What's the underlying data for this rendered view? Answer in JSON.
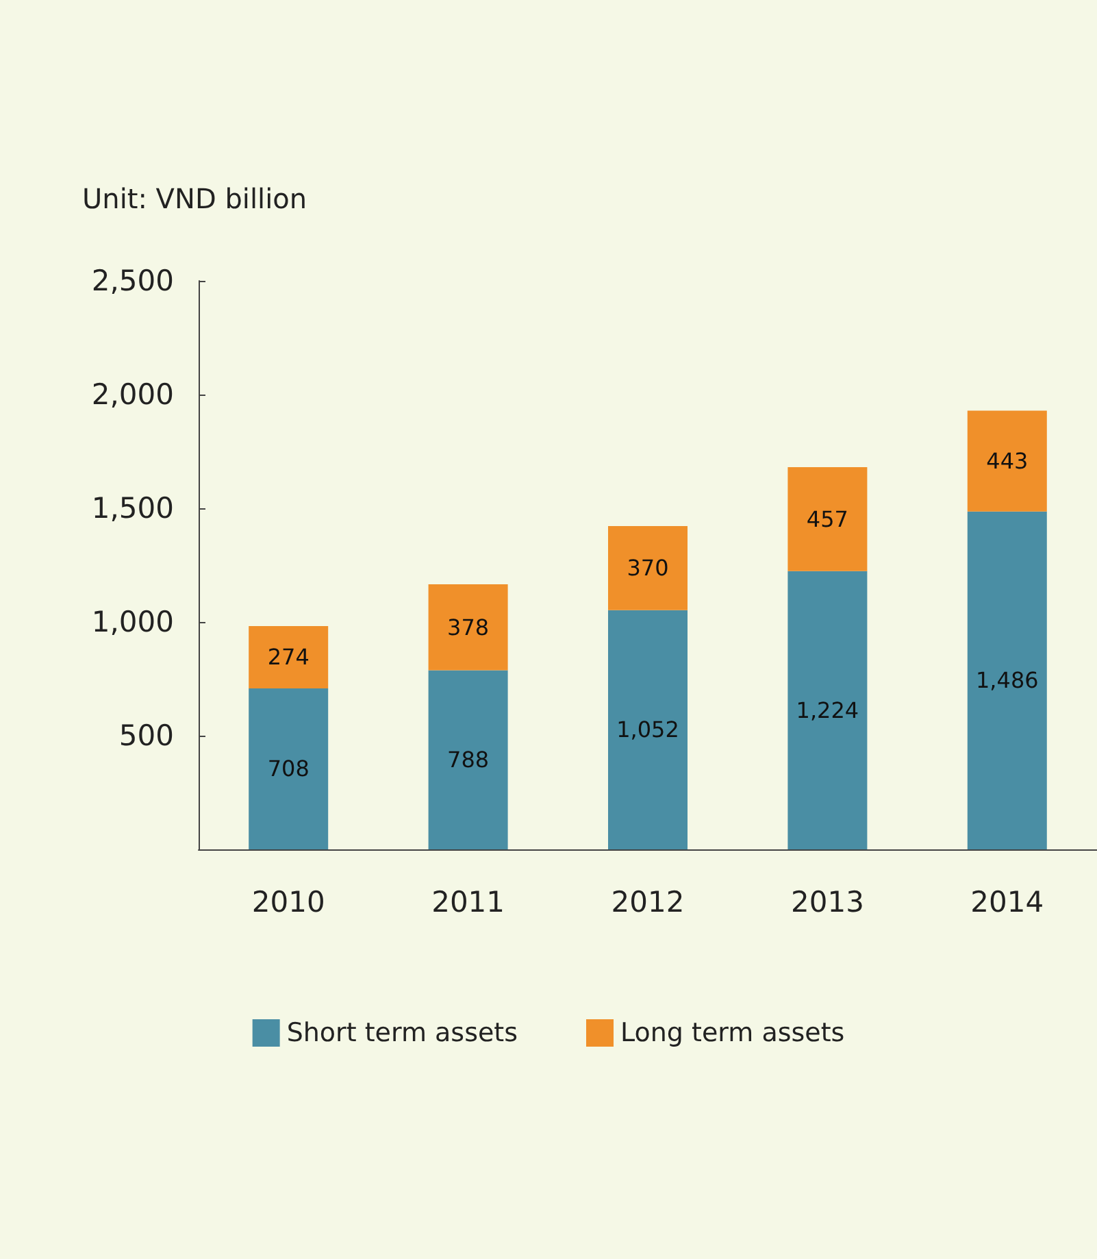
{
  "chart_data": {
    "type": "bar",
    "ylabel": "Unit: VND billion",
    "categories": [
      "2010",
      "2011",
      "2012",
      "2013",
      "2014"
    ],
    "series": [
      {
        "name": "Short term assets",
        "color": "#4a8ea4",
        "values": [
          708,
          788,
          1052,
          1224,
          1486
        ],
        "value_labels": [
          "708",
          "788",
          "1,052",
          "1,224",
          "1,486"
        ]
      },
      {
        "name": "Long term assets",
        "color": "#f0902a",
        "values": [
          274,
          378,
          370,
          457,
          443
        ],
        "value_labels": [
          "274",
          "378",
          "370",
          "457",
          "443"
        ]
      }
    ],
    "stacked": true,
    "ylim": [
      0,
      2500
    ],
    "yticks": [
      {
        "value": 0,
        "label": null
      },
      500,
      {
        "value": 1000,
        "label": "1,000"
      },
      {
        "value": 1500,
        "label": "1,500"
      },
      {
        "value": 2000,
        "label": "2,000"
      },
      {
        "value": 2500,
        "label": "2,500"
      }
    ],
    "grid": false,
    "legend": "bottom"
  }
}
